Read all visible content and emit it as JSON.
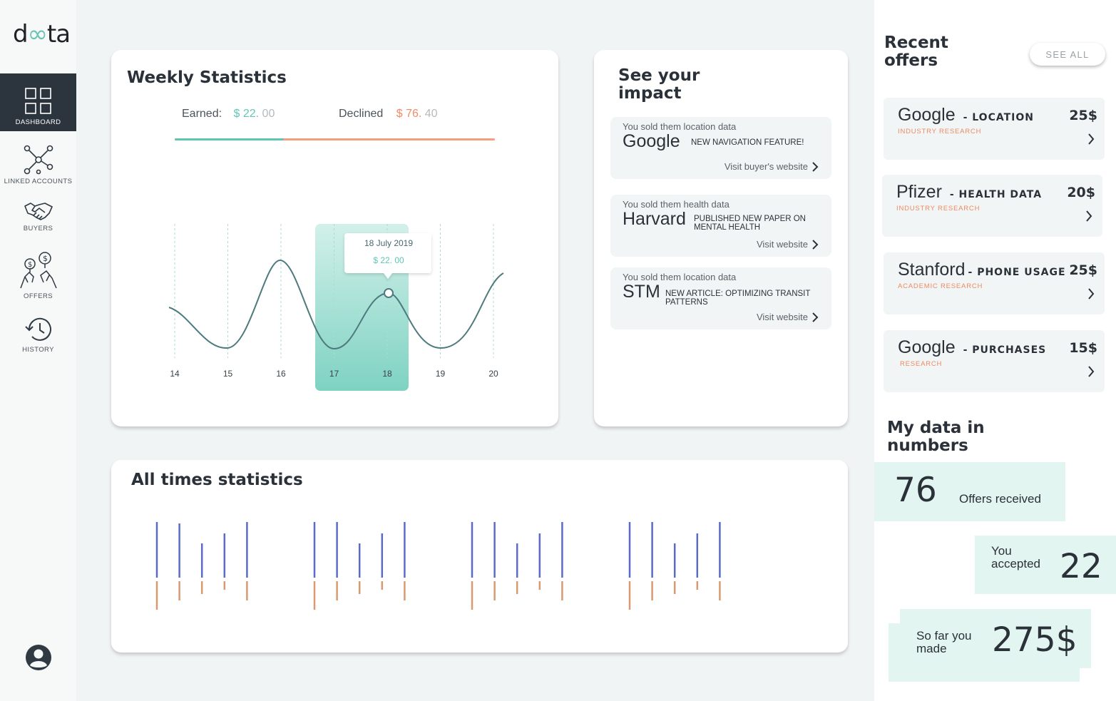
{
  "app": {
    "logo": {
      "part1": "d",
      "part2": "ta"
    }
  },
  "sidebar": {
    "items": [
      {
        "label": "DASHBOARD",
        "icon": "dashboard-grid-icon",
        "active": true
      },
      {
        "label": "LINKED ACCOUNTS",
        "icon": "network-icon",
        "active": false
      },
      {
        "label": "BUYERS",
        "icon": "handshake-icon",
        "active": false
      },
      {
        "label": "OFFERS",
        "icon": "money-hands-icon",
        "active": false
      },
      {
        "label": "HISTORY",
        "icon": "history-clock-icon",
        "active": false
      }
    ],
    "profile_icon": "account-circle-icon"
  },
  "weekly": {
    "title": "Weekly Statistics",
    "earned_label": "Earned:",
    "earned_amount": "$ 22.",
    "earned_decimal": " 00",
    "declined_label": "Declined",
    "declined_amount": "$ 76.",
    "declined_decimal": " 40",
    "earned_share": 0.34,
    "tooltip_date": "18 July 2019",
    "tooltip_value": "$ 22. 00",
    "x_labels": [
      "14",
      "15",
      "16",
      "17",
      "18",
      "19",
      "20"
    ],
    "highlight_range": [
      "17",
      "18"
    ],
    "colors": {
      "teal": "#5fc6b4",
      "orange": "#f2a07e",
      "line": "#4d7a7e"
    }
  },
  "impact": {
    "title_line1": "See your",
    "title_line2": "impact",
    "items": [
      {
        "sub": "You sold them location data",
        "company": "Google",
        "news": "NEW NAVIGATION FEATURE!",
        "link": "Visit buyer's website"
      },
      {
        "sub": "You sold them health data",
        "company": "Harvard",
        "news": "PUBLISHED NEW PAPER ON MENTAL HEALTH",
        "link": "Visit website"
      },
      {
        "sub": "You sold them location data",
        "company": "STM",
        "news": "NEW ARTICLE: OPTIMIZING TRANSIT PATTERNS",
        "link": "Visit website"
      }
    ]
  },
  "all_time": {
    "title": "All times statistics",
    "colors": {
      "blue": "#5b6bc6",
      "orange": "#d99a72"
    }
  },
  "chart_data": {
    "type": "bar",
    "groups": 4,
    "series": [
      {
        "values": [
          [
            80,
            78,
            50,
            64,
            80
          ],
          [
            80,
            80,
            50,
            64,
            80
          ],
          [
            80,
            80,
            50,
            64,
            80
          ],
          [
            80,
            80,
            50,
            64,
            80
          ]
        ]
      },
      {
        "values": [
          [
            40,
            27,
            18,
            12,
            27
          ],
          [
            40,
            27,
            18,
            12,
            27
          ],
          [
            40,
            27,
            18,
            12,
            27
          ],
          [
            40,
            27,
            18,
            12,
            27
          ]
        ]
      }
    ]
  },
  "recent_offers": {
    "title_line1": "Recent",
    "title_line2": "offers",
    "see_all": "SEE ALL",
    "items": [
      {
        "company": "Google",
        "type": "- LOCATION",
        "category": "INDUSTRY RESEARCH",
        "price": "25$"
      },
      {
        "company": "Pfizer",
        "type": "- HEALTH DATA",
        "category": "INDUSTRY RESEARCH",
        "price": "20$"
      },
      {
        "company": "Stanford",
        "type": "- PHONE USAGE",
        "category": "ACADEMIC RESEARCH",
        "price": "25$"
      },
      {
        "company": "Google",
        "type": "- PURCHASES",
        "category": "RESEARCH",
        "price": "15$"
      }
    ]
  },
  "numbers": {
    "title_line1": "My data in",
    "title_line2": "numbers",
    "offers_received_value": "76",
    "offers_received_label": "Offers received",
    "accepted_label_1": "You",
    "accepted_label_2": "accepted",
    "accepted_value": "22",
    "made_label_1": "So far you",
    "made_label_2": "made",
    "made_value": "275$"
  }
}
